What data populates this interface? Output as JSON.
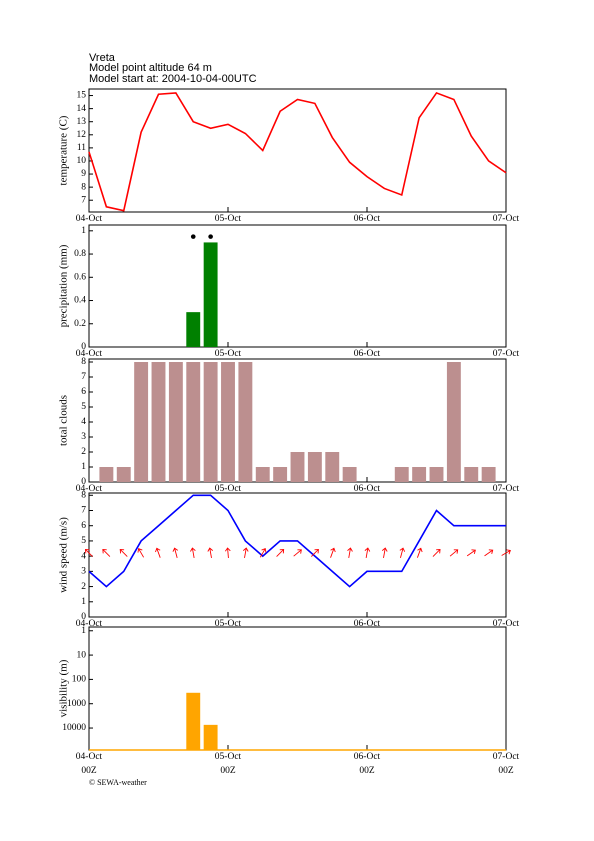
{
  "header": [
    "Vreta",
    "Model point altitude  64 m",
    "Model start at: 2004-10-04-00UTC"
  ],
  "footer": "© SEWA-weather",
  "chart_data": [
    {
      "type": "line",
      "ylabel": "temperature (C)",
      "color": "#ff0000",
      "x": [
        0,
        3,
        6,
        9,
        12,
        15,
        18,
        21,
        24,
        27,
        30,
        33,
        36,
        39,
        42,
        45,
        48,
        51,
        54,
        57,
        60,
        63,
        66,
        69,
        72
      ],
      "values": [
        10.7,
        6.5,
        6.2,
        12.2,
        15.1,
        15.2,
        13,
        12.5,
        12.8,
        12.1,
        10.8,
        13.8,
        14.7,
        14.4,
        11.8,
        9.9,
        8.8,
        7.9,
        7.4,
        13.3,
        15.2,
        14.7,
        11.9,
        10,
        9.1
      ],
      "xlim": [
        0,
        72
      ],
      "xticks": [
        {
          "value": 0,
          "label": "04-Oct"
        },
        {
          "value": 24,
          "label": "05-Oct"
        },
        {
          "value": 48,
          "label": "06-Oct"
        },
        {
          "value": 72,
          "label": "07-Oct"
        }
      ],
      "ylim": [
        6.1,
        15.5
      ],
      "yticks": [
        7,
        8,
        9,
        10,
        11,
        12,
        13,
        14,
        15
      ]
    },
    {
      "type": "bar",
      "ylabel": "precipitation (mm)",
      "color": "#008000",
      "x": [
        18,
        21
      ],
      "values": [
        0.3,
        0.9
      ],
      "marker_values": [
        0.95,
        0.95
      ],
      "xlim": [
        0,
        72
      ],
      "xticks": [
        {
          "value": 0,
          "label": "04-Oct"
        },
        {
          "value": 24,
          "label": "05-Oct"
        },
        {
          "value": 48,
          "label": "06-Oct"
        },
        {
          "value": 72,
          "label": "07-Oct"
        }
      ],
      "ylim": [
        0,
        1.05
      ],
      "yticks": [
        0,
        0.2,
        0.4,
        0.6,
        0.8,
        1
      ]
    },
    {
      "type": "bar",
      "ylabel": "total clouds",
      "color": "#bc8f8f",
      "x": [
        3,
        6,
        9,
        12,
        15,
        18,
        21,
        24,
        27,
        30,
        33,
        36,
        39,
        42,
        45,
        48,
        51,
        54,
        57,
        60,
        63,
        66,
        69
      ],
      "values": [
        1,
        1,
        8,
        8,
        8,
        8,
        8,
        8,
        8,
        1,
        1,
        2,
        2,
        2,
        1,
        0,
        0,
        1,
        1,
        1,
        8,
        1,
        1
      ],
      "xlim": [
        0,
        72
      ],
      "xticks": [
        {
          "value": 0,
          "label": "04-Oct"
        },
        {
          "value": 24,
          "label": "05-Oct"
        },
        {
          "value": 48,
          "label": "06-Oct"
        },
        {
          "value": 72,
          "label": "07-Oct"
        }
      ],
      "ylim": [
        0,
        8.2
      ],
      "yticks": [
        0,
        1,
        2,
        3,
        4,
        5,
        6,
        7,
        8
      ]
    },
    {
      "type": "line",
      "ylabel": "wind speed (m/s)",
      "color": "#0000ff",
      "arrow_color": "#ff0000",
      "x": [
        0,
        3,
        6,
        9,
        12,
        15,
        18,
        21,
        24,
        27,
        30,
        33,
        36,
        39,
        42,
        45,
        48,
        51,
        54,
        57,
        60,
        63,
        66,
        69,
        72
      ],
      "values": [
        3,
        2,
        3,
        5,
        6,
        7,
        8,
        8,
        7,
        5,
        4,
        5,
        5,
        4,
        3,
        2,
        3,
        3,
        3,
        5,
        7,
        6,
        6,
        6,
        6
      ],
      "wind_direction": [
        315,
        315,
        315,
        330,
        340,
        345,
        350,
        350,
        355,
        10,
        30,
        45,
        50,
        45,
        20,
        10,
        10,
        10,
        15,
        20,
        45,
        50,
        55,
        55,
        60
      ],
      "xlim": [
        0,
        72
      ],
      "xticks": [
        {
          "value": 0,
          "label": "04-Oct"
        },
        {
          "value": 24,
          "label": "05-Oct"
        },
        {
          "value": 48,
          "label": "06-Oct"
        },
        {
          "value": 72,
          "label": "07-Oct"
        }
      ],
      "ylim": [
        0,
        8.15
      ],
      "yticks": [
        0,
        1,
        2,
        3,
        4,
        5,
        6,
        7,
        8
      ]
    },
    {
      "type": "bar",
      "ylabel": "visibility (m)",
      "color": "#ffa500",
      "log_scale": true,
      "y_inverted": true,
      "x": [
        18,
        21
      ],
      "values": [
        355,
        7400
      ],
      "xlim": [
        0,
        72
      ],
      "xticks": [
        {
          "value": 0,
          "label": "04-Oct"
        },
        {
          "value": 24,
          "label": "05-Oct"
        },
        {
          "value": 48,
          "label": "06-Oct"
        },
        {
          "value": 72,
          "label": "07-Oct"
        }
      ],
      "xticks_hour": [
        {
          "value": 0,
          "label": "00Z"
        },
        {
          "value": 24,
          "label": "00Z"
        },
        {
          "value": 48,
          "label": "00Z"
        },
        {
          "value": 72,
          "label": "00Z"
        }
      ],
      "ylim": [
        0.7,
        80000
      ],
      "yticks": [
        1,
        10,
        100,
        1000,
        10000
      ]
    }
  ]
}
